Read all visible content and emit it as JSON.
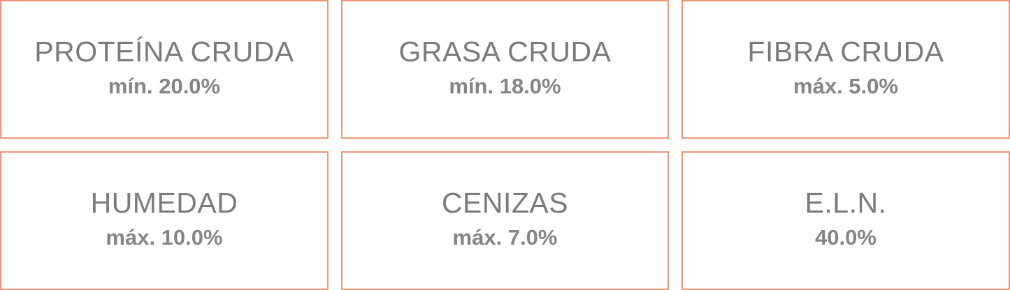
{
  "colors": {
    "border": "#f0957a",
    "text": "#7b7b7c"
  },
  "items": [
    {
      "name": "PROTEÍNA CRUDA",
      "value": "mín. 20.0%"
    },
    {
      "name": "GRASA CRUDA",
      "value": "mín. 18.0%"
    },
    {
      "name": "FIBRA CRUDA",
      "value": "máx. 5.0%"
    },
    {
      "name": "HUMEDAD",
      "value": "máx. 10.0%"
    },
    {
      "name": "CENIZAS",
      "value": "máx. 7.0%"
    },
    {
      "name": "E.L.N.",
      "value": "40.0%"
    }
  ]
}
